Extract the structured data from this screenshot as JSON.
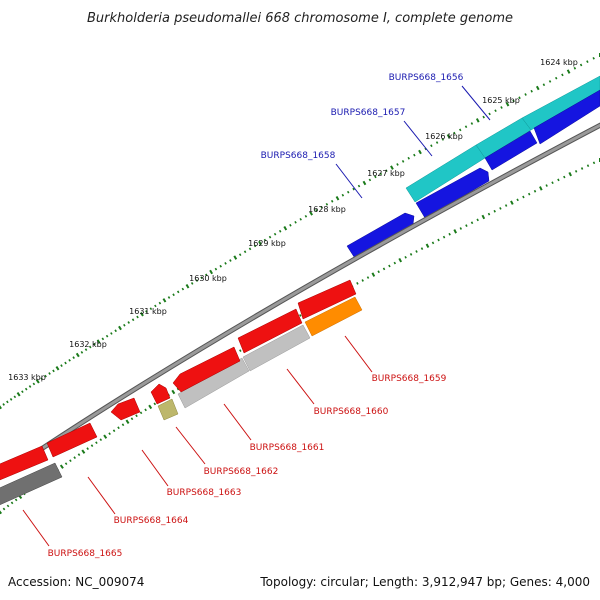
{
  "title": "Burkholderia pseudomallei 668 chromosome I, complete genome",
  "footer": {
    "accession": "Accession: NC_009074",
    "summary": "Topology: circular; Length: 3,912,947 bp; Genes: 4,000"
  },
  "ticks": [
    {
      "label": "1624 kbp"
    },
    {
      "label": "1625 kbp"
    },
    {
      "label": "1626 kbp"
    },
    {
      "label": "1627 kbp"
    },
    {
      "label": "1628 kbp"
    },
    {
      "label": "1629 kbp"
    },
    {
      "label": "1630 kbp"
    },
    {
      "label": "1631 kbp"
    },
    {
      "label": "1632 kbp"
    },
    {
      "label": "1633 kbp"
    }
  ],
  "genes_forward": [
    {
      "name": "BURPS668_1656",
      "color": "#20c6c6"
    },
    {
      "name": "BURPS668_1657",
      "color": "#1515e0"
    },
    {
      "name": "BURPS668_1658",
      "color": "#1515e0"
    }
  ],
  "genes_reverse": [
    {
      "name": "BURPS668_1659",
      "color": "#ff8c00"
    },
    {
      "name": "BURPS668_1660",
      "color": "#c0c0c0"
    },
    {
      "name": "BURPS668_1661",
      "color": "#c0c0c0"
    },
    {
      "name": "BURPS668_1662",
      "color": "#bdb76b"
    },
    {
      "name": "BURPS668_1663",
      "color": "#ee1111"
    },
    {
      "name": "BURPS668_1664",
      "color": "#ee1111"
    },
    {
      "name": "BURPS668_1665",
      "color": "#707070"
    }
  ],
  "colors": {
    "backbone": "#888888",
    "tick": "#1a7a1a",
    "label_forward": "#1a1ab0",
    "label_reverse": "#cc1111"
  }
}
